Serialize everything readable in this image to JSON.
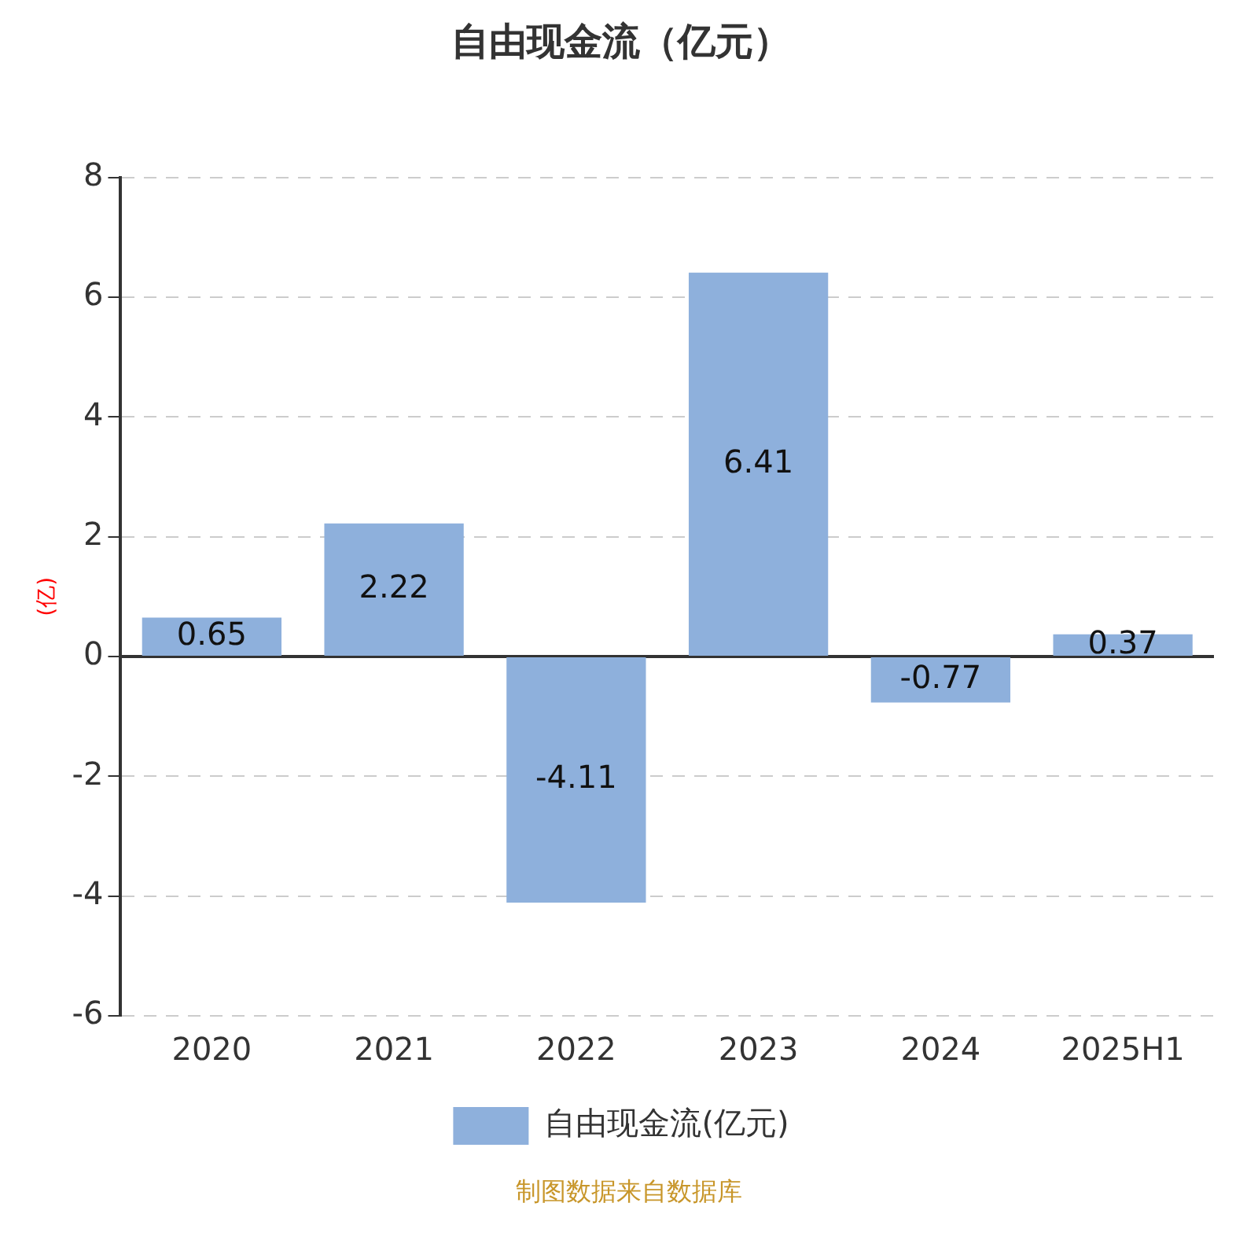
{
  "chart_data": {
    "type": "bar",
    "title": "自由现金流（亿元）",
    "ylabel": "(亿)",
    "categories": [
      "2020",
      "2021",
      "2022",
      "2023",
      "2024",
      "2025H1"
    ],
    "series": [
      {
        "name": "自由现金流(亿元)",
        "color": "#8eb0dc",
        "values": [
          0.65,
          2.22,
          -4.11,
          6.41,
          -0.77,
          0.37
        ]
      }
    ],
    "ref_lines": [
      {
        "axis": "y",
        "value": 0,
        "color": "#333333",
        "line_style": "solid"
      }
    ],
    "ylim": [
      -6,
      8
    ],
    "yticks": [
      -6,
      -4,
      -2,
      0,
      2,
      4,
      6,
      8
    ],
    "grid": "y",
    "legend": "bottom",
    "data_labels": true,
    "annotations": [
      "制图数据来自数据库"
    ]
  }
}
